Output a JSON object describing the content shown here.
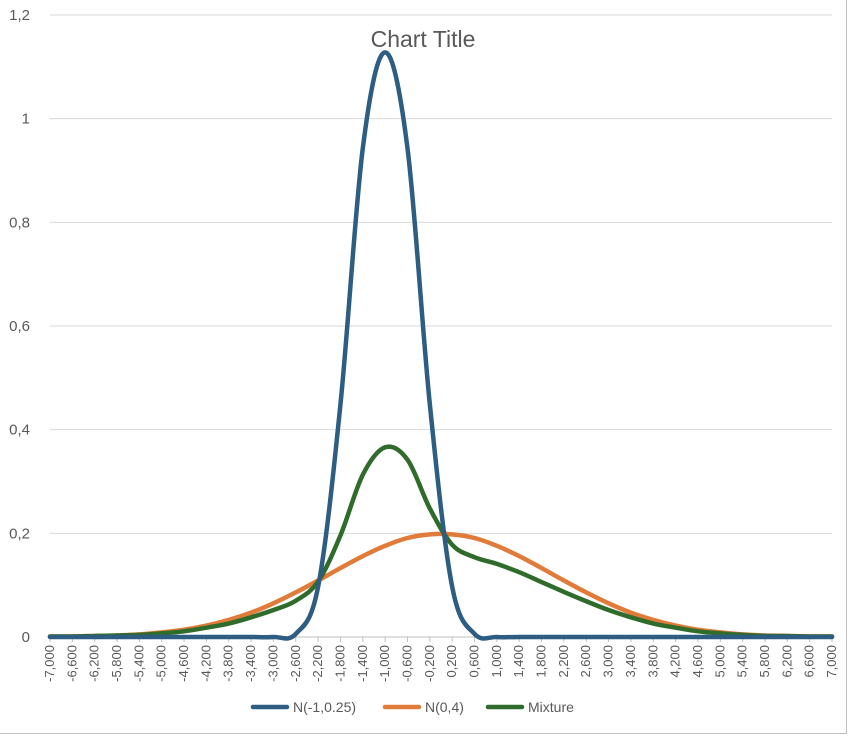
{
  "chart_data": {
    "type": "line",
    "title": "Chart Title",
    "xlabel": "",
    "ylabel": "",
    "xlim": [
      -7,
      7
    ],
    "ylim": [
      0,
      1.2
    ],
    "y_ticks": [
      "0",
      "0,2",
      "0,4",
      "0,6",
      "0,8",
      "1",
      "1,2"
    ],
    "x_ticks": [
      "-7,000",
      "-6,600",
      "-6,200",
      "-5,800",
      "-5,400",
      "-5,000",
      "-4,600",
      "-4,200",
      "-3,800",
      "-3,400",
      "-3,000",
      "-2,600",
      "-2,200",
      "-1,800",
      "-1,400",
      "-1,000",
      "-0,600",
      "-0,200",
      "0,200",
      "0,600",
      "1,000",
      "1,400",
      "1,800",
      "2,200",
      "2,600",
      "3,000",
      "3,400",
      "3,800",
      "4,200",
      "4,600",
      "5,000",
      "5,400",
      "5,800",
      "6,200",
      "6,600",
      "7,000"
    ],
    "grid": "horizontal",
    "legend_position": "bottom",
    "x": [
      -7,
      -6.6,
      -6.2,
      -5.8,
      -5.4,
      -5,
      -4.6,
      -4.2,
      -3.8,
      -3.4,
      -3,
      -2.6,
      -2.2,
      -1.8,
      -1.4,
      -1,
      -0.6,
      -0.2,
      0.2,
      0.6,
      1,
      1.4,
      1.8,
      2.2,
      2.6,
      3,
      3.4,
      3.8,
      4.2,
      4.6,
      5,
      5.4,
      5.8,
      6.2,
      6.6,
      7
    ],
    "series": [
      {
        "name": "N(-1,0.25)",
        "color": "#2e5d83",
        "values": [
          0,
          0,
          0,
          0,
          0,
          0,
          0,
          0,
          0,
          0,
          0,
          0.006,
          0.097,
          0.449,
          0.943,
          1.128,
          0.943,
          0.449,
          0.097,
          0.006,
          0,
          0,
          0,
          0,
          0,
          0,
          0,
          0,
          0,
          0,
          0,
          0,
          0,
          0,
          0,
          0
        ]
      },
      {
        "name": "N(0,4)",
        "color": "#e07b39",
        "values": [
          0.001,
          0.001,
          0.002,
          0.003,
          0.005,
          0.009,
          0.014,
          0.022,
          0.033,
          0.047,
          0.065,
          0.086,
          0.109,
          0.133,
          0.156,
          0.176,
          0.191,
          0.198,
          0.198,
          0.191,
          0.176,
          0.156,
          0.133,
          0.109,
          0.086,
          0.065,
          0.047,
          0.033,
          0.022,
          0.014,
          0.009,
          0.005,
          0.003,
          0.002,
          0.001,
          0.001
        ]
      },
      {
        "name": "Mixture",
        "color": "#2f6b2a",
        "values": [
          0.001,
          0.001,
          0.002,
          0.003,
          0.004,
          0.007,
          0.011,
          0.018,
          0.026,
          0.038,
          0.052,
          0.07,
          0.107,
          0.196,
          0.313,
          0.366,
          0.342,
          0.248,
          0.178,
          0.154,
          0.141,
          0.125,
          0.106,
          0.087,
          0.069,
          0.052,
          0.038,
          0.026,
          0.018,
          0.011,
          0.007,
          0.004,
          0.002,
          0.002,
          0.001,
          0.001
        ]
      }
    ]
  }
}
